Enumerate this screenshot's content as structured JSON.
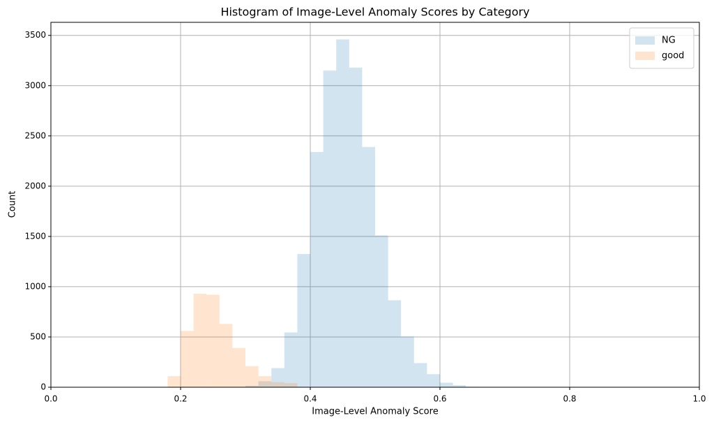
{
  "chart_data": {
    "type": "histogram",
    "title": "Histogram of Image-Level Anomaly Scores by Category",
    "x_label": "Image-Level Anomaly Score",
    "y_label": "Count",
    "bins": [
      0.18,
      0.2,
      0.22,
      0.24,
      0.26,
      0.28,
      0.3,
      0.32,
      0.34,
      0.36,
      0.38,
      0.4,
      0.42,
      0.44,
      0.46,
      0.48,
      0.5,
      0.52,
      0.54,
      0.56,
      0.58,
      0.6,
      0.62,
      0.64,
      0.66
    ],
    "series": [
      {
        "name": "NG",
        "color": "#1f77b4",
        "values": [
          0,
          0,
          0,
          0,
          0,
          0,
          15,
          60,
          190,
          545,
          1325,
          2340,
          3150,
          3460,
          3180,
          2390,
          1510,
          865,
          505,
          240,
          130,
          45,
          20,
          5
        ]
      },
      {
        "name": "good",
        "color": "#ff7f0e",
        "values": [
          110,
          560,
          930,
          920,
          630,
          390,
          210,
          110,
          50,
          40,
          0,
          0,
          0,
          0,
          0,
          0,
          0,
          0,
          0,
          0,
          0,
          0,
          0,
          0
        ]
      }
    ],
    "alpha": 0.2,
    "xlim": [
      0,
      1
    ],
    "ylim": [
      0,
      3630
    ],
    "xticks": [
      {
        "value": 0,
        "label": "0.0"
      },
      0.2,
      0.4,
      0.6,
      0.8,
      {
        "value": 1,
        "label": "1.0"
      }
    ],
    "yticks": [
      0,
      500,
      1000,
      1500,
      2000,
      2500,
      3000,
      3500
    ],
    "grid": true,
    "legend": "upper-right"
  }
}
